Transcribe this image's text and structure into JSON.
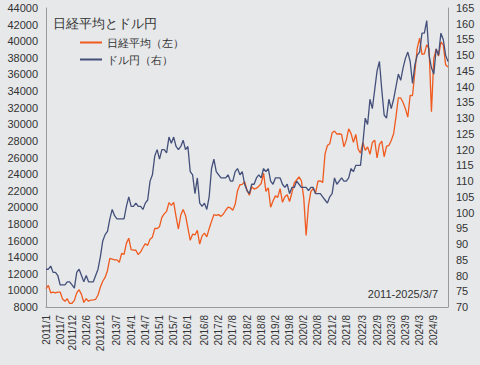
{
  "chart_data": {
    "type": "line",
    "title": "日経平均とドル円",
    "annotation": "2011-2025/3/7",
    "legend": "upper left",
    "grid": false,
    "categories": [
      "2011/1",
      null,
      null,
      null,
      null,
      null,
      "2011/7",
      null,
      null,
      null,
      null,
      "2011/12",
      null,
      null,
      null,
      null,
      null,
      "2012/6",
      null,
      null,
      null,
      null,
      null,
      "2012/12",
      null,
      null,
      null,
      null,
      null,
      null,
      "2013/7",
      null,
      null,
      null,
      null,
      null,
      "2014/1",
      null,
      null,
      null,
      null,
      null,
      "2014/7",
      null,
      null,
      null,
      null,
      null,
      "2015/1",
      null,
      null,
      null,
      null,
      null,
      "2015/7",
      null,
      null,
      null,
      null,
      null,
      "2016/1",
      null,
      null,
      null,
      null,
      null,
      null,
      "2016/8",
      null,
      null,
      null,
      null,
      null,
      "2017/2",
      null,
      null,
      null,
      null,
      null,
      "2017/8",
      null,
      null,
      null,
      null,
      null,
      "2018/2",
      null,
      null,
      null,
      null,
      null,
      "2018/8",
      null,
      null,
      null,
      null,
      null,
      "2019/2",
      null,
      null,
      null,
      null,
      null,
      "2019/8",
      null,
      null,
      null,
      null,
      null,
      "2020/2",
      null,
      null,
      null,
      null,
      null,
      "2020/8",
      null,
      null,
      null,
      null,
      null,
      "2021/2",
      null,
      null,
      null,
      null,
      null,
      "2021/8",
      null,
      null,
      null,
      null,
      null,
      null,
      "2022/3",
      null,
      null,
      null,
      null,
      null,
      "2022/9",
      null,
      null,
      null,
      null,
      null,
      "2023/3",
      null,
      null,
      null,
      null,
      null,
      "2023/9",
      null,
      null,
      null,
      null,
      null,
      "2024/3",
      null,
      null,
      null,
      null,
      null,
      "2024/9",
      null,
      null,
      null,
      null,
      null,
      null
    ],
    "ylim": [
      8000,
      44000
    ],
    "yticks": [
      8000,
      10000,
      12000,
      14000,
      16000,
      18000,
      20000,
      22000,
      24000,
      26000,
      28000,
      30000,
      32000,
      34000,
      36000,
      38000,
      40000,
      42000,
      44000
    ],
    "y2lim": [
      70,
      165
    ],
    "y2ticks": [
      70,
      75,
      80,
      85,
      90,
      95,
      100,
      105,
      110,
      115,
      120,
      125,
      130,
      135,
      140,
      145,
      150,
      155,
      160,
      165
    ],
    "series": [
      {
        "name": "日経平均（左）",
        "color": "#f05a1e",
        "values": [
          10200,
          10600,
          9700,
          9800,
          9700,
          9800,
          9800,
          8950,
          8700,
          8990,
          8430,
          8450,
          8800,
          9700,
          10080,
          9520,
          8540,
          9000,
          8700,
          8840,
          8870,
          8930,
          9450,
          10400,
          11100,
          11560,
          12400,
          13860,
          13770,
          13680,
          13670,
          13390,
          14450,
          14330,
          15660,
          16290,
          14900,
          14840,
          14830,
          14300,
          14630,
          15160,
          15620,
          15420,
          16170,
          16410,
          17460,
          17450,
          17670,
          18800,
          19210,
          19520,
          20560,
          20240,
          20590,
          18890,
          17390,
          19080,
          19750,
          19030,
          17520,
          16030,
          16760,
          16670,
          17230,
          15580,
          16570,
          16890,
          16450,
          17430,
          18310,
          19110,
          19040,
          19120,
          18910,
          19200,
          19650,
          20030,
          19930,
          19650,
          20360,
          22010,
          22720,
          22760,
          23100,
          22070,
          21450,
          22470,
          22200,
          22300,
          22550,
          22870,
          24120,
          21920,
          22350,
          20010,
          20770,
          21380,
          21200,
          22260,
          20600,
          21280,
          21520,
          20700,
          21760,
          22930,
          23290,
          23660,
          23200,
          21140,
          16600,
          20190,
          21880,
          22290,
          21710,
          23140,
          23190,
          22980,
          26430,
          27440,
          27660,
          28970,
          29180,
          28810,
          28860,
          28790,
          27280,
          28090,
          29450,
          28890,
          27820,
          28790,
          27000,
          26530,
          27820,
          26850,
          27280,
          26390,
          27800,
          28090,
          25940,
          27590,
          27970,
          26090,
          27330,
          27450,
          28040,
          28860,
          30890,
          33190,
          33170,
          32620,
          31860,
          30860,
          33490,
          33460,
          36290,
          39170,
          40370,
          38410,
          38490,
          39580,
          39100,
          31500,
          37920,
          39080,
          38210,
          39890,
          39570,
          37160,
          36890
        ]
      },
      {
        "name": "ドル円（右）",
        "color": "#44507a",
        "axis": "y2",
        "values": [
          82,
          82,
          83,
          81,
          81,
          80,
          77,
          77,
          77,
          78,
          78,
          77,
          76,
          81,
          82,
          80,
          78,
          80,
          78,
          78,
          78,
          80,
          82,
          86,
          91,
          93,
          94,
          98,
          101,
          99,
          98,
          98,
          98,
          98,
          102,
          105,
          102,
          102,
          103,
          102,
          102,
          101,
          103,
          104,
          110,
          112,
          118,
          120,
          117,
          120,
          120,
          119,
          124,
          122,
          124,
          121,
          120,
          121,
          123,
          120,
          121,
          113,
          112,
          106,
          111,
          103,
          102,
          103,
          101,
          105,
          114,
          117,
          113,
          112,
          111,
          111,
          111,
          112,
          110,
          110,
          113,
          114,
          112,
          113,
          109,
          107,
          106,
          109,
          109,
          111,
          112,
          111,
          114,
          113,
          114,
          110,
          109,
          111,
          111,
          111,
          109,
          108,
          109,
          106,
          108,
          108,
          110,
          109,
          108,
          108,
          108,
          107,
          108,
          108,
          106,
          106,
          106,
          105,
          104,
          103,
          105,
          106,
          111,
          109,
          110,
          111,
          110,
          110,
          111,
          114,
          113,
          115,
          115,
          115,
          122,
          130,
          128,
          136,
          133,
          139,
          145,
          148,
          139,
          131,
          130,
          136,
          133,
          136,
          140,
          144,
          142,
          146,
          149,
          151,
          148,
          141,
          147,
          150,
          151,
          157,
          157,
          161,
          150,
          146,
          144,
          152,
          150,
          157,
          155,
          150,
          148
        ]
      }
    ]
  }
}
